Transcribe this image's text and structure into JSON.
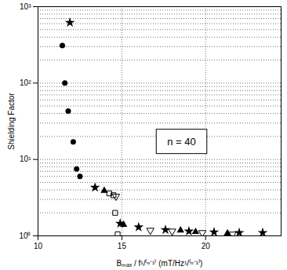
{
  "chart_data": {
    "type": "scatter",
    "xlabel": "Bₘₐₓ / f¹/⁽ⁿ⁻¹⁾ (mT/Hz¹/⁽ⁿ⁻¹⁾)",
    "ylabel": "Shielding Factor",
    "annotation": "n = 40",
    "xlim": [
      10,
      24.5
    ],
    "xticks": [
      10,
      15,
      20
    ],
    "ylim": [
      1,
      1000
    ],
    "yticks": [
      {
        "value": 1,
        "label": "10⁰"
      },
      {
        "value": 10,
        "label": "10¹"
      },
      {
        "value": 100,
        "label": "10²"
      },
      {
        "value": 1000,
        "label": "10³"
      }
    ],
    "log": "y",
    "grid": true,
    "series": [
      {
        "marker": "circle",
        "color": "#000000",
        "x": [
          11.45,
          11.6,
          11.8,
          12.1,
          12.3,
          12.5
        ],
        "values": [
          310,
          100,
          43,
          17,
          7.5,
          6
        ]
      },
      {
        "marker": "star",
        "color": "#000000",
        "x": [
          11.9,
          13.4,
          14.9,
          16.0,
          17.6,
          19.0,
          20.5,
          22.0,
          23.4
        ],
        "values": [
          620,
          4.3,
          1.45,
          1.3,
          1.2,
          1.15,
          1.12,
          1.1,
          1.1
        ]
      },
      {
        "marker": "open_square",
        "color": "#000000",
        "x": [
          14.25,
          14.5,
          14.6,
          14.75
        ],
        "values": [
          3.6,
          3.4,
          2.0,
          1.05
        ]
      },
      {
        "marker": "triangle",
        "color": "#000000",
        "x": [
          13.95,
          15.1,
          18.5,
          19.4,
          21.3
        ],
        "values": [
          3.9,
          1.4,
          1.18,
          1.13,
          1.08
        ]
      },
      {
        "marker": "open_triangle_down",
        "color": "#000000",
        "x": [
          14.65,
          16.7,
          18.0,
          19.8,
          21.6
        ],
        "values": [
          3.3,
          1.18,
          1.15,
          1.1,
          1.05
        ]
      }
    ]
  }
}
